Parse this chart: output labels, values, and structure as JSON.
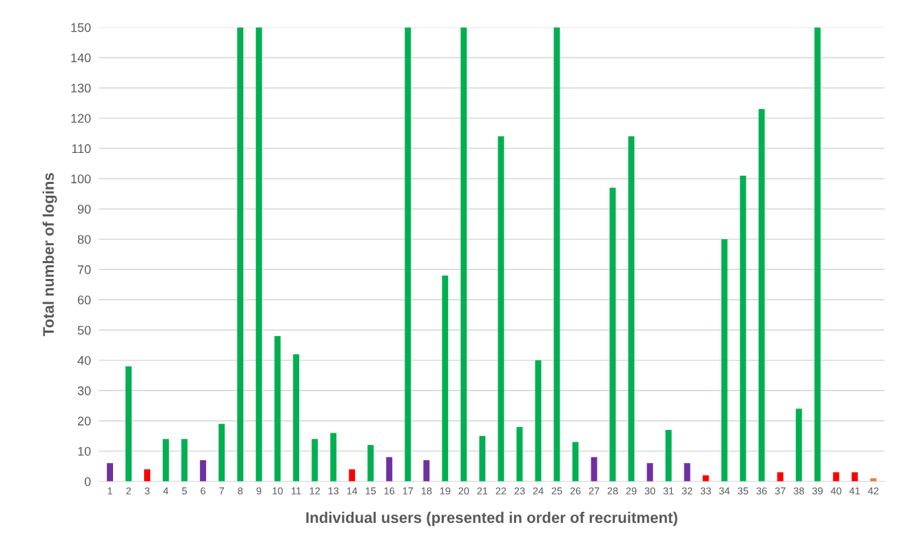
{
  "chart_data": {
    "type": "bar",
    "xlabel": "Individual users (presented in order of recruitment)",
    "ylabel": "Total number of logins",
    "categories": [
      "1",
      "2",
      "3",
      "4",
      "5",
      "6",
      "7",
      "8",
      "9",
      "10",
      "11",
      "12",
      "13",
      "14",
      "15",
      "16",
      "17",
      "18",
      "19",
      "20",
      "21",
      "22",
      "23",
      "24",
      "25",
      "26",
      "27",
      "28",
      "29",
      "30",
      "31",
      "32",
      "33",
      "34",
      "35",
      "36",
      "37",
      "38",
      "39",
      "40",
      "41",
      "42"
    ],
    "values": [
      6,
      38,
      4,
      14,
      14,
      7,
      19,
      150,
      150,
      48,
      42,
      14,
      16,
      4,
      12,
      8,
      150,
      7,
      68,
      150,
      15,
      114,
      18,
      40,
      150,
      13,
      8,
      97,
      114,
      6,
      17,
      6,
      2,
      80,
      101,
      123,
      3,
      24,
      150,
      3,
      3,
      1
    ],
    "colors": [
      "#7030a0",
      "#00b050",
      "#ff0000",
      "#00b050",
      "#00b050",
      "#7030a0",
      "#00b050",
      "#00b050",
      "#00b050",
      "#00b050",
      "#00b050",
      "#00b050",
      "#00b050",
      "#ff0000",
      "#00b050",
      "#7030a0",
      "#00b050",
      "#7030a0",
      "#00b050",
      "#00b050",
      "#00b050",
      "#00b050",
      "#00b050",
      "#00b050",
      "#00b050",
      "#00b050",
      "#7030a0",
      "#00b050",
      "#00b050",
      "#7030a0",
      "#00b050",
      "#7030a0",
      "#ff0000",
      "#00b050",
      "#00b050",
      "#00b050",
      "#ff0000",
      "#00b050",
      "#00b050",
      "#ff0000",
      "#ff0000",
      "#ed7d31"
    ],
    "ylim": [
      0,
      150
    ],
    "yticks": [
      0,
      10,
      20,
      30,
      40,
      50,
      60,
      70,
      80,
      90,
      100,
      110,
      120,
      130,
      140,
      150
    ],
    "grid": "y",
    "legend": false
  }
}
